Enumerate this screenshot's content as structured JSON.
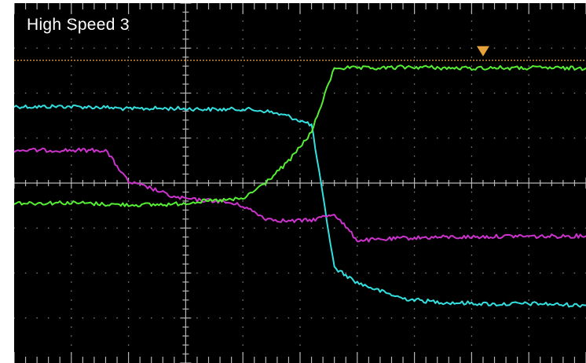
{
  "chart_data": {
    "type": "line",
    "title": "High Speed 3",
    "x": [
      -10,
      -9,
      -8,
      -7,
      -6,
      -5,
      -4,
      -3,
      -2,
      -1,
      0,
      1,
      2,
      3,
      4,
      5,
      6,
      7,
      8,
      9,
      10,
      11,
      12,
      13,
      14,
      15
    ],
    "series": [
      {
        "color": "#33e0e0",
        "values": [
          1.45,
          1.44,
          1.45,
          1.44,
          1.43,
          1.4,
          1.41,
          1.41,
          1.4,
          1.39,
          1.4,
          1.36,
          1.26,
          1.1,
          -1.6,
          -1.88,
          -2.04,
          -2.18,
          -2.23,
          -2.26,
          -2.27,
          -2.29,
          -2.28,
          -2.28,
          -2.3,
          -2.31
        ]
      },
      {
        "color": "#cc33cc",
        "values": [
          0.62,
          0.62,
          0.62,
          0.62,
          0.62,
          0.02,
          -0.1,
          -0.27,
          -0.32,
          -0.34,
          -0.43,
          -0.67,
          -0.72,
          -0.7,
          -0.58,
          -1.08,
          -1.07,
          -1.04,
          -1.03,
          -1.02,
          -1.02,
          -1.01,
          -1.0,
          -1.01,
          -1.0,
          -1.0
        ]
      },
      {
        "color": "#55ee33",
        "values": [
          -0.37,
          -0.38,
          -0.37,
          -0.38,
          -0.4,
          -0.41,
          -0.41,
          -0.4,
          -0.35,
          -0.33,
          -0.3,
          0.01,
          0.41,
          0.96,
          2.18,
          2.17,
          2.17,
          2.19,
          2.19,
          2.17,
          2.17,
          2.18,
          2.17,
          2.18,
          2.17,
          2.17
        ]
      }
    ],
    "trigger_level": 2.32,
    "xlim": [
      -10,
      15
    ],
    "ylim": [
      -3.4,
      3.4
    ],
    "grid": true,
    "colors": {
      "background": "#000000",
      "grid": "#b5b5b5",
      "trigger": "#e8a23c"
    }
  }
}
